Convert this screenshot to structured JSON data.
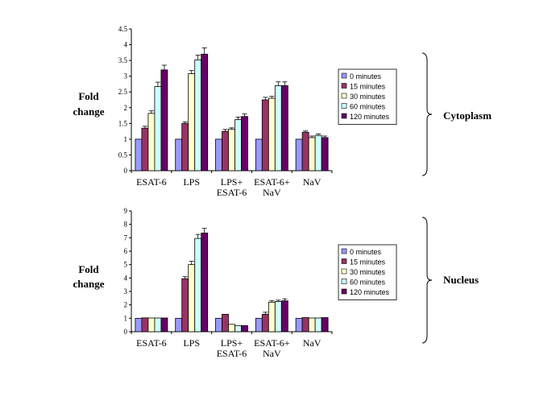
{
  "colors": [
    "#9999ff",
    "#993366",
    "#ffffcc",
    "#ccffff",
    "#660066"
  ],
  "chart_data": [
    {
      "type": "bar",
      "ylabel": [
        "Fold",
        "change"
      ],
      "side_label": "Cytoplasm",
      "categories": [
        [
          "ESAT-6"
        ],
        [
          "LPS"
        ],
        [
          "LPS+",
          "ESAT-6"
        ],
        [
          "ESAT-6+",
          "NaV"
        ],
        [
          "NaV"
        ]
      ],
      "yticks": [
        "0",
        "0.5",
        "1",
        "1.5",
        "2",
        "2.5",
        "3",
        "3.5",
        "4",
        "4.5"
      ],
      "ylim": [
        0,
        4.5
      ],
      "legend": "right",
      "series": [
        {
          "name": "0 minutes",
          "values": [
            1,
            1,
            1,
            1,
            1
          ],
          "errors": [
            0,
            0,
            0,
            0,
            0
          ]
        },
        {
          "name": "15 minutes",
          "values": [
            1.35,
            1.5,
            1.25,
            2.25,
            1.22
          ],
          "errors": [
            0.06,
            0.05,
            0.06,
            0.08,
            0.04
          ]
        },
        {
          "name": "30 minutes",
          "values": [
            1.82,
            3.08,
            1.32,
            2.3,
            1.05
          ],
          "errors": [
            0.08,
            0.1,
            0.04,
            0.06,
            0.05
          ]
        },
        {
          "name": "60 minutes",
          "values": [
            2.67,
            3.52,
            1.62,
            2.7,
            1.12
          ],
          "errors": [
            0.14,
            0.15,
            0.08,
            0.12,
            0.05
          ]
        },
        {
          "name": "120 minutes",
          "values": [
            3.2,
            3.7,
            1.72,
            2.7,
            1.05
          ],
          "errors": [
            0.15,
            0.2,
            0.08,
            0.12,
            0.05
          ]
        }
      ]
    },
    {
      "type": "bar",
      "ylabel": [
        "Fold",
        "change"
      ],
      "side_label": "Nucleus",
      "categories": [
        [
          "ESAT-6"
        ],
        [
          "LPS"
        ],
        [
          "LPS+",
          "ESAT-6"
        ],
        [
          "ESAT-6+",
          "NaV"
        ],
        [
          "NaV"
        ]
      ],
      "yticks": [
        "0",
        "1",
        "2",
        "3",
        "4",
        "5",
        "6",
        "7",
        "8",
        "9"
      ],
      "ylim": [
        0,
        9
      ],
      "legend": "right",
      "series": [
        {
          "name": "0 minutes",
          "values": [
            1,
            1,
            1,
            1,
            1
          ],
          "errors": [
            0,
            0,
            0,
            0,
            0
          ]
        },
        {
          "name": "15 minutes",
          "values": [
            1.03,
            3.95,
            1.3,
            1.3,
            1.05
          ],
          "errors": [
            0,
            0.15,
            0,
            0.15,
            0
          ]
        },
        {
          "name": "30 minutes",
          "values": [
            1.02,
            5.0,
            0.55,
            2.2,
            1.02
          ],
          "errors": [
            0,
            0.25,
            0,
            0.1,
            0
          ]
        },
        {
          "name": "60 minutes",
          "values": [
            1.02,
            6.95,
            0.45,
            2.25,
            1.02
          ],
          "errors": [
            0,
            0.3,
            0,
            0.1,
            0
          ]
        },
        {
          "name": "120 minutes",
          "values": [
            1.02,
            7.35,
            0.45,
            2.3,
            1.05
          ],
          "errors": [
            0,
            0.35,
            0,
            0.15,
            0
          ]
        }
      ]
    }
  ]
}
